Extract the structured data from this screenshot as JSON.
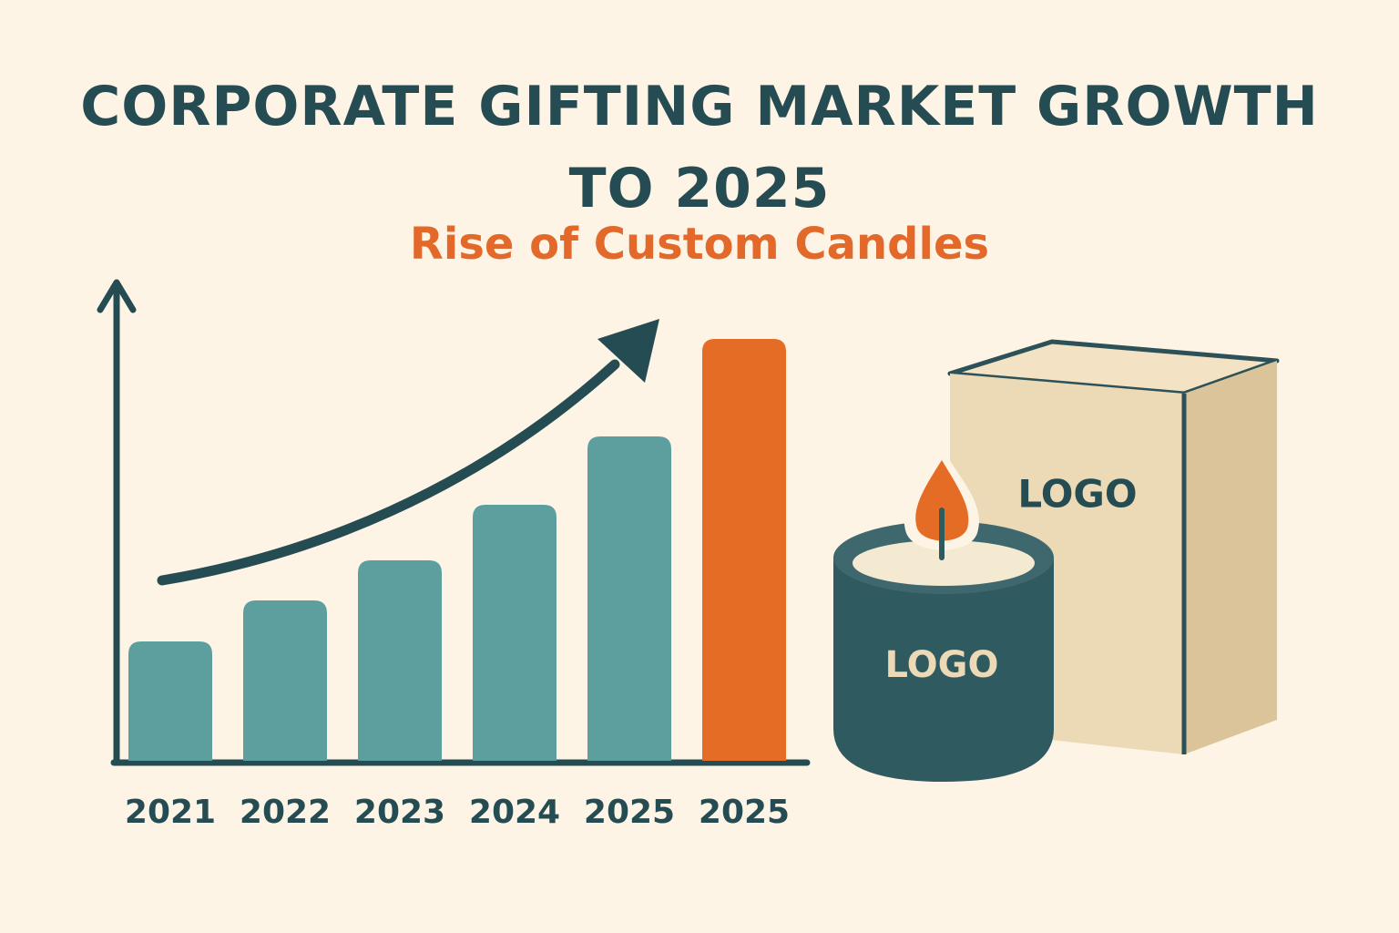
{
  "chart_data": {
    "type": "bar",
    "title": "CORPORATE GIFTING MARKET GROWTH TO 2025",
    "subtitle": "Rise of Custom Candles",
    "categories": [
      "2021",
      "2022",
      "2023",
      "2024",
      "2025",
      "2025"
    ],
    "values": [
      131,
      176,
      220,
      281,
      356,
      463
    ],
    "colors": [
      "#5d9f9f",
      "#5d9f9f",
      "#5d9f9f",
      "#5d9f9f",
      "#5d9f9f",
      "#e46c24"
    ],
    "ylim": [
      0,
      530
    ]
  },
  "illustration": {
    "box_label": "LOGO",
    "candle_label": "LOGO"
  }
}
